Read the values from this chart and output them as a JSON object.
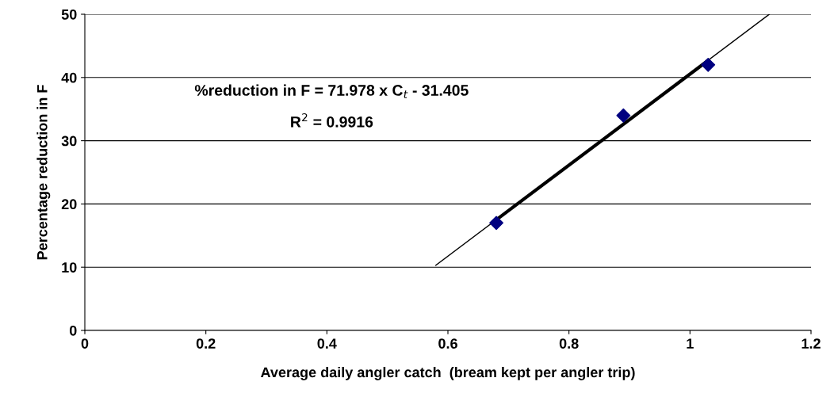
{
  "chart_data": {
    "type": "scatter",
    "xlabel": "Average daily angler catch  (bream kept per angler trip)",
    "ylabel": "Percentage reduction in F",
    "xlim": [
      0,
      1.2
    ],
    "xticks": [
      0,
      0.2,
      0.4,
      0.6,
      0.8,
      1,
      1.2
    ],
    "ylim": [
      0,
      50
    ],
    "yticks": [
      0,
      10,
      20,
      30,
      40,
      50
    ],
    "grid": "y",
    "marker": "diamond",
    "annotations": [
      "%reduction in F = 71.978 x C$_{t}$ - 31.405",
      "R$^{2}$ = 0.9916"
    ],
    "series": [
      {
        "type": "line",
        "color": "#000000",
        "x": [
          0.58,
          1.131
        ],
        "values": [
          10.3,
          50
        ],
        "marker": "none",
        "line_style": "solid"
      },
      {
        "type": "line",
        "color": "#000000",
        "x": [
          0.68,
          1.03
        ],
        "values": [
          17.5,
          42.7
        ],
        "marker": "none",
        "line_style": "solid"
      },
      {
        "color": "#000080",
        "x": [
          0.68,
          0.89,
          1.03
        ],
        "values": [
          17,
          34,
          42
        ]
      }
    ]
  }
}
